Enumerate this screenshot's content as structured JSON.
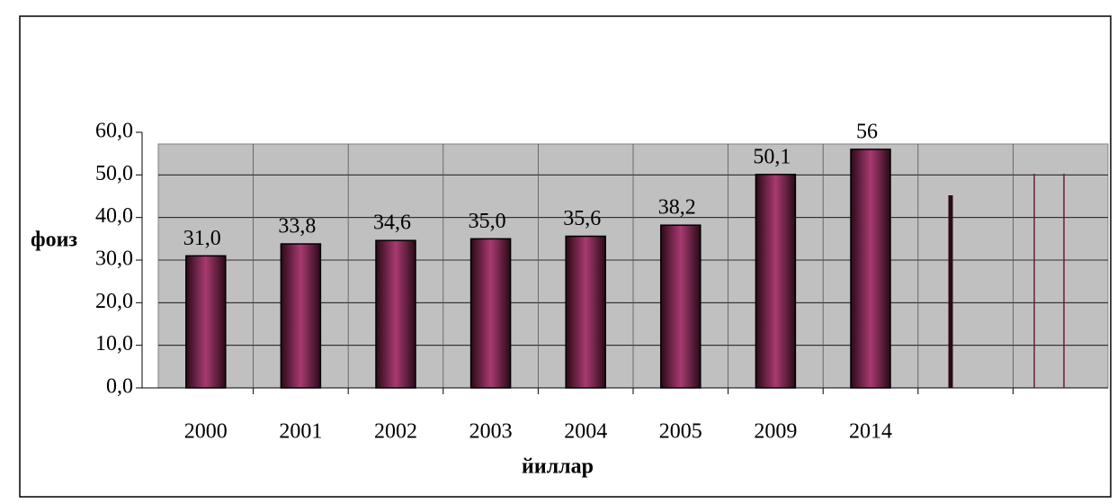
{
  "chart_data": {
    "type": "bar",
    "x_label": "йиллар",
    "y_label": "фоиз",
    "categories": [
      "2000",
      "2001",
      "2002",
      "2003",
      "2004",
      "2005",
      "2009",
      "2014",
      null,
      null
    ],
    "values": [
      31.0,
      33.8,
      34.6,
      35.0,
      35.6,
      38.2,
      50.1,
      56,
      null,
      null
    ],
    "value_labels": [
      "31,0",
      "33,8",
      "34,6",
      "35,0",
      "35,6",
      "38,2",
      "50,1",
      "56",
      null,
      null
    ],
    "color": "#8b2d5c",
    "ylim": [
      0,
      60
    ],
    "yticks": [
      {
        "value": 0,
        "label": "0,0"
      },
      {
        "value": 10,
        "label": "10,0"
      },
      {
        "value": 20,
        "label": "20,0"
      },
      {
        "value": 30,
        "label": "30,0"
      },
      {
        "value": 40,
        "label": "40,0"
      },
      {
        "value": 50,
        "label": "50,0"
      },
      {
        "value": 60,
        "label": "60,0"
      }
    ],
    "grid": true
  }
}
